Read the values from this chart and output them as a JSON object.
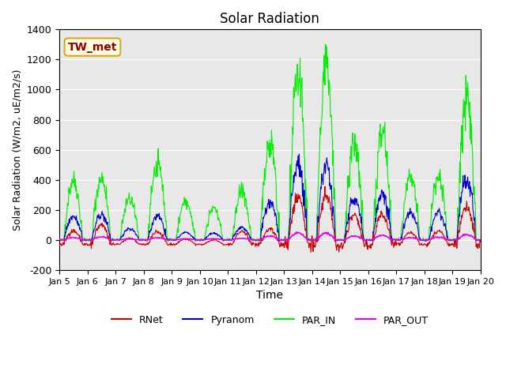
{
  "title": "Solar Radiation",
  "xlabel": "Time",
  "ylabel": "Solar Radiation (W/m2, uE/m2/s)",
  "ylim": [
    -200,
    1400
  ],
  "xlim": [
    0,
    15
  ],
  "yticks": [
    -200,
    0,
    200,
    400,
    600,
    800,
    1000,
    1200,
    1400
  ],
  "xtick_labels": [
    "Jan 5",
    "Jan 6",
    "Jan 7",
    "Jan 8",
    "Jan 9",
    "Jan 10",
    "Jan 11",
    "Jan 12",
    "Jan 13",
    "Jan 14",
    "Jan 15",
    "Jan 16",
    "Jan 17",
    "Jan 18",
    "Jan 19",
    "Jan 20"
  ],
  "station_label": "TW_met",
  "bg_color": "#e8e8e8",
  "colors": {
    "RNet": "#cc0000",
    "Pyranom": "#0000cc",
    "PAR_IN": "#00ee00",
    "PAR_OUT": "#ee00ee"
  },
  "legend_labels": [
    "RNet",
    "Pyranom",
    "PAR_IN",
    "PAR_OUT"
  ]
}
